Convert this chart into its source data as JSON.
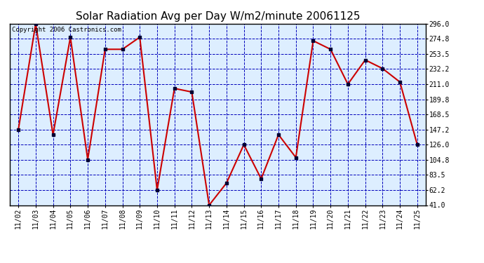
{
  "title": "Solar Radiation Avg per Day W/m2/minute 20061125",
  "copyright_text": "Copyright 2006 Castronics.com",
  "dates": [
    "11/02",
    "11/03",
    "11/04",
    "11/05",
    "11/06",
    "11/07",
    "11/08",
    "11/09",
    "11/10",
    "11/11",
    "11/12",
    "11/13",
    "11/14",
    "11/15",
    "11/16",
    "11/17",
    "11/18",
    "11/19",
    "11/20",
    "11/21",
    "11/22",
    "11/23",
    "11/24",
    "11/25"
  ],
  "values": [
    147.2,
    296.0,
    140.0,
    277.0,
    105.0,
    260.0,
    260.0,
    277.0,
    62.2,
    205.0,
    200.0,
    41.0,
    72.0,
    126.0,
    78.0,
    140.0,
    108.0,
    272.0,
    260.0,
    211.0,
    245.0,
    233.0,
    214.0,
    126.0
  ],
  "ylim": [
    41.0,
    296.0
  ],
  "yticks": [
    41.0,
    62.2,
    83.5,
    104.8,
    126.0,
    147.2,
    168.5,
    189.8,
    211.0,
    232.2,
    253.5,
    274.8,
    296.0
  ],
  "line_color": "#cc0000",
  "marker_color": "#000033",
  "bg_color": "#ddeeff",
  "grid_color": "#0000bb",
  "title_fontsize": 11,
  "copyright_fontsize": 6.5,
  "tick_fontsize": 7,
  "ytick_fontsize": 7
}
